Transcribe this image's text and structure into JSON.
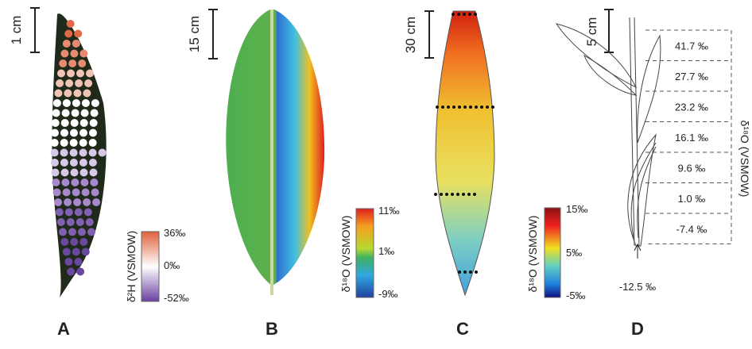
{
  "panels": [
    {
      "letter": "A",
      "scale_bar": "1 cm",
      "colorbar_labels": [
        "36‰",
        "0‰",
        "-52‰"
      ],
      "colorbar_title": "δ²H (VSMOW)"
    },
    {
      "letter": "B",
      "scale_bar": "15 cm",
      "colorbar_labels": [
        "11‰",
        "1‰",
        "-9‰"
      ],
      "colorbar_title": "δ¹⁸O (VSMOW)"
    },
    {
      "letter": "C",
      "scale_bar": "30 cm",
      "colorbar_labels": [
        "15‰",
        "5‰",
        "-5‰"
      ],
      "colorbar_title": "δ¹⁸O (VSMOW)"
    },
    {
      "letter": "D",
      "scale_bar": "5 cm",
      "segments": [
        "41.7 ‰",
        "27.7 ‰",
        "23.2 ‰",
        "16.1 ‰",
        "9.6 ‰",
        "1.0 ‰",
        "-7.4 ‰"
      ],
      "base": "-12.5 ‰",
      "axis_title": "δ¹⁸O (VSMOW)"
    }
  ]
}
